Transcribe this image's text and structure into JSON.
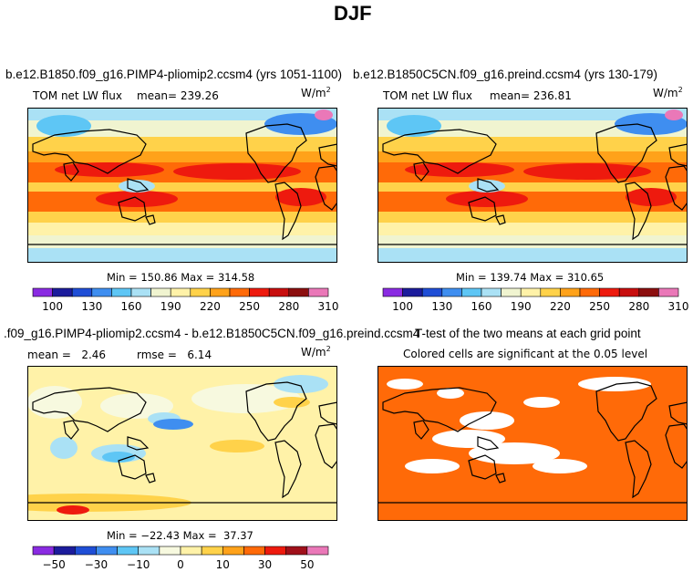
{
  "page": {
    "title": "DJF"
  },
  "chart_data": [
    {
      "type": "heatmap",
      "title": "b.e12.B1850.f09_g16.PIMP4-pliomip2.ccsm4 (yrs 1051-1100)",
      "variable": "TOM net LW flux",
      "mean_text": "mean= 239.26",
      "units_base": "W/m",
      "units_exp": "2",
      "minmax_text": "Min = 150.86 Max = 314.58",
      "min": 150.86,
      "max": 314.58,
      "colorbar_ticks": [
        "100",
        "130",
        "160",
        "190",
        "220",
        "250",
        "280",
        "310"
      ],
      "colorbar_colors": [
        "#8a2be2",
        "#1c1c9c",
        "#1f4ed6",
        "#3f8ef0",
        "#5ec6f5",
        "#aae1f5",
        "#f0f4d0",
        "#fff2a8",
        "#ffd24a",
        "#ffa21a",
        "#ff6a08",
        "#ee1a0e",
        "#c80e0e",
        "#8c0f0f",
        "#ea78b8"
      ]
    },
    {
      "type": "heatmap",
      "title": "b.e12.B1850C5CN.f09_g16.preind.ccsm4 (yrs 130-179)",
      "variable": "TOM net LW flux",
      "mean_text": "mean= 236.81",
      "units_base": "W/m",
      "units_exp": "2",
      "minmax_text": "Min = 139.74 Max = 310.65",
      "min": 139.74,
      "max": 310.65,
      "colorbar_ticks": [
        "100",
        "130",
        "160",
        "190",
        "220",
        "250",
        "280",
        "310"
      ],
      "colorbar_colors": [
        "#8a2be2",
        "#1c1c9c",
        "#1f4ed6",
        "#3f8ef0",
        "#5ec6f5",
        "#aae1f5",
        "#f0f4d0",
        "#fff2a8",
        "#ffd24a",
        "#ffa21a",
        "#ff6a08",
        "#ee1a0e",
        "#c80e0e",
        "#8c0f0f",
        "#ea78b8"
      ]
    },
    {
      "type": "heatmap",
      "title": ".f09_g16.PIMP4-pliomip2.ccsm4 - b.e12.B1850C5CN.f09_g16.preind.ccsm4",
      "mean_text": "mean =   2.46",
      "rmse_text": "rmse =   6.14",
      "mean": 2.46,
      "rmse": 6.14,
      "units_base": "W/m",
      "units_exp": "2",
      "minmax_text": "Min = −22.43 Max =  37.37",
      "min": -22.43,
      "max": 37.37,
      "colorbar_ticks": [
        "−50",
        "−30",
        "−10",
        "0",
        "10",
        "30",
        "50"
      ],
      "colorbar_colors": [
        "#8a2be2",
        "#1c1c9c",
        "#1f4ed6",
        "#3f8ef0",
        "#5ec6f5",
        "#aae1f5",
        "#f7f9df",
        "#fff2a8",
        "#ffd24a",
        "#ffa21a",
        "#ff6a08",
        "#ee1a0e",
        "#a0101a",
        "#ea78b8"
      ]
    },
    {
      "type": "heatmap",
      "title": "T-test of the two means at each grid point",
      "subtitle": "Colored cells are significant at the 0.05 level",
      "significant_color": "#ff6a08"
    }
  ]
}
